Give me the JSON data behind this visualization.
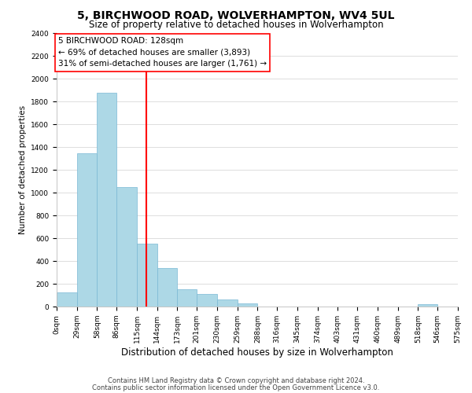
{
  "title": "5, BIRCHWOOD ROAD, WOLVERHAMPTON, WV4 5UL",
  "subtitle": "Size of property relative to detached houses in Wolverhampton",
  "xlabel": "Distribution of detached houses by size in Wolverhampton",
  "ylabel": "Number of detached properties",
  "bar_edges": [
    0,
    29,
    58,
    86,
    115,
    144,
    173,
    201,
    230,
    259,
    288,
    316,
    345,
    374,
    403,
    431,
    460,
    489,
    518,
    546,
    575
  ],
  "bar_heights": [
    125,
    1350,
    1880,
    1050,
    550,
    340,
    155,
    110,
    60,
    30,
    0,
    0,
    0,
    0,
    0,
    0,
    0,
    0,
    20,
    0
  ],
  "bar_color": "#add8e6",
  "bar_edge_color": "#7ab8d4",
  "vline_x": 128,
  "vline_color": "red",
  "annotation_title": "5 BIRCHWOOD ROAD: 128sqm",
  "annotation_line1": "← 69% of detached houses are smaller (3,893)",
  "annotation_line2": "31% of semi-detached houses are larger (1,761) →",
  "ylim": [
    0,
    2400
  ],
  "yticks": [
    0,
    200,
    400,
    600,
    800,
    1000,
    1200,
    1400,
    1600,
    1800,
    2000,
    2200,
    2400
  ],
  "xtick_labels": [
    "0sqm",
    "29sqm",
    "58sqm",
    "86sqm",
    "115sqm",
    "144sqm",
    "173sqm",
    "201sqm",
    "230sqm",
    "259sqm",
    "288sqm",
    "316sqm",
    "345sqm",
    "374sqm",
    "403sqm",
    "431sqm",
    "460sqm",
    "489sqm",
    "518sqm",
    "546sqm",
    "575sqm"
  ],
  "footnote1": "Contains HM Land Registry data © Crown copyright and database right 2024.",
  "footnote2": "Contains public sector information licensed under the Open Government Licence v3.0.",
  "title_fontsize": 10,
  "subtitle_fontsize": 8.5,
  "xlabel_fontsize": 8.5,
  "ylabel_fontsize": 7.5,
  "tick_fontsize": 6.5,
  "annotation_fontsize": 7.5,
  "footnote_fontsize": 6,
  "background_color": "#ffffff",
  "grid_color": "#d8d8d8"
}
